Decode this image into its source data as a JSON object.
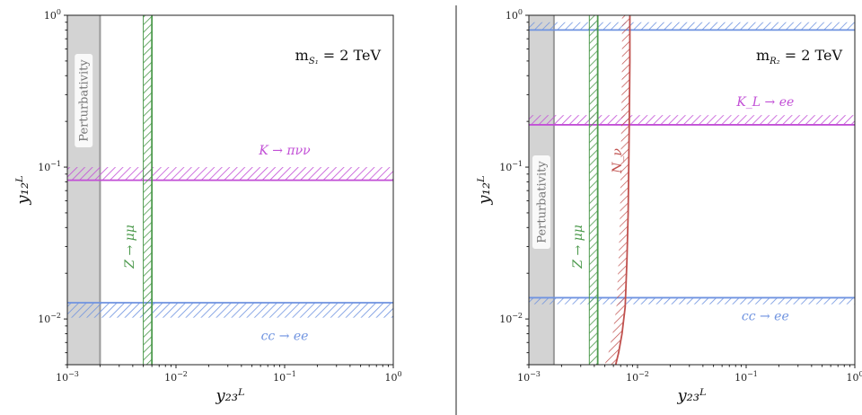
{
  "chart_data": [
    {
      "type": "line",
      "title": "m_S1 = 2 TeV",
      "title_main": "m",
      "title_sub": "S₁",
      "title_rest": " = 2 TeV",
      "xlabel": "y₂₃ᴸ",
      "ylabel": "y₁₂ᴸ",
      "xscale": "log",
      "yscale": "log",
      "xlim": [
        0.001,
        1
      ],
      "ylim": [
        0.005,
        1
      ],
      "xticks": [
        {
          "v": 0.001,
          "b": "10",
          "e": "−3"
        },
        {
          "v": 0.01,
          "b": "10",
          "e": "−2"
        },
        {
          "v": 0.1,
          "b": "10",
          "e": "−1"
        },
        {
          "v": 1,
          "b": "10",
          "e": "0"
        }
      ],
      "yticks": [
        {
          "v": 0.01,
          "b": "10",
          "e": "−2"
        },
        {
          "v": 0.1,
          "b": "10",
          "e": "−1"
        },
        {
          "v": 1,
          "b": "10",
          "e": "0"
        }
      ],
      "perturbativity": {
        "label": "Perturbativity",
        "x_max": 0.002,
        "color": "#d3d3d3"
      },
      "constraints": [
        {
          "name": "K → πνν",
          "label": "K → πνν",
          "orientation": "horizontal",
          "value": 0.082,
          "hatch_to": 0.1,
          "color": "#c24fd6",
          "label_at": [
            0.1,
            0.13
          ]
        },
        {
          "name": "cc → ee",
          "label": "cc → ee",
          "orientation": "horizontal",
          "value": 0.0128,
          "hatch_to": 0.0102,
          "color": "#6f93e0",
          "label_at": [
            0.1,
            0.0078
          ]
        },
        {
          "name": "Z → μμ",
          "label": "Z → μμ",
          "orientation": "vertical",
          "value": 0.006,
          "hatch_to": 0.005,
          "color": "#4d9a4d",
          "label_at": [
            0.0037,
            0.03
          ]
        }
      ],
      "curves": []
    },
    {
      "type": "line",
      "title": "m_R2 = 2 TeV",
      "title_main": "m",
      "title_sub": "R₂",
      "title_rest": " = 2 TeV",
      "xlabel": "y₂₃ᴸ",
      "ylabel": "y₁₂ᴸ",
      "xscale": "log",
      "yscale": "log",
      "xlim": [
        0.001,
        1
      ],
      "ylim": [
        0.005,
        1
      ],
      "xticks": [
        {
          "v": 0.001,
          "b": "10",
          "e": "−3"
        },
        {
          "v": 0.01,
          "b": "10",
          "e": "−2"
        },
        {
          "v": 0.1,
          "b": "10",
          "e": "−1"
        },
        {
          "v": 1,
          "b": "10",
          "e": "0"
        }
      ],
      "yticks": [
        {
          "v": 0.01,
          "b": "10",
          "e": "−2"
        },
        {
          "v": 0.1,
          "b": "10",
          "e": "−1"
        },
        {
          "v": 1,
          "b": "10",
          "e": "0"
        }
      ],
      "perturbativity": {
        "label": "Perturbativity",
        "x_max": 0.0017,
        "color": "#d3d3d3"
      },
      "constraints": [
        {
          "name": "cc → ee (top)",
          "label": "",
          "orientation": "horizontal",
          "value": 0.8,
          "hatch_to": 0.9,
          "color": "#6f93e0",
          "label_at": null
        },
        {
          "name": "K_L → ee",
          "label": "K_L → ee",
          "orientation": "horizontal",
          "value": 0.19,
          "hatch_to": 0.22,
          "color": "#c24fd6",
          "label_at": [
            0.15,
            0.27
          ]
        },
        {
          "name": "cc → ee",
          "label": "cc → ee",
          "orientation": "horizontal",
          "value": 0.0138,
          "hatch_to": 0.0125,
          "color": "#6f93e0",
          "label_at": [
            0.15,
            0.0105
          ]
        },
        {
          "name": "Z → μμ",
          "label": "Z → μμ",
          "orientation": "vertical",
          "value": 0.0043,
          "hatch_to": 0.0036,
          "color": "#4d9a4d",
          "label_at": [
            0.0028,
            0.03
          ]
        }
      ],
      "curves": [
        {
          "name": "N_ν",
          "label": "N_ν",
          "color": "#c0504d",
          "hatch_offset": 0.0013,
          "points": [
            [
              0.0085,
              1.0
            ],
            [
              0.0085,
              0.5
            ],
            [
              0.0084,
              0.2
            ],
            [
              0.0083,
              0.1
            ],
            [
              0.0082,
              0.05
            ],
            [
              0.008,
              0.025
            ],
            [
              0.0077,
              0.012
            ],
            [
              0.0072,
              0.008
            ],
            [
              0.0067,
              0.006
            ],
            [
              0.0063,
              0.005
            ]
          ],
          "label_at": [
            0.0066,
            0.11
          ]
        }
      ]
    }
  ]
}
